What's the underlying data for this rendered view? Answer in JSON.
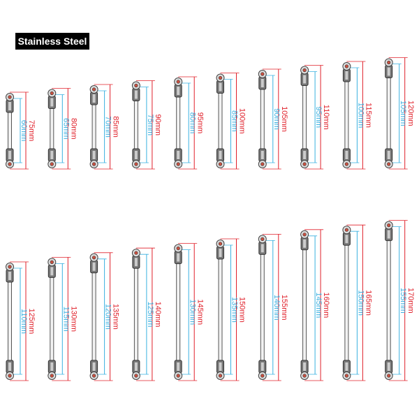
{
  "badge": "Stainless Steel",
  "rows": [
    {
      "links": [
        {
          "total": "75mm",
          "inner": "60mm"
        },
        {
          "total": "80mm",
          "inner": "65mm"
        },
        {
          "total": "85mm",
          "inner": "70mm"
        },
        {
          "total": "90mm",
          "inner": "75mm"
        },
        {
          "total": "95mm",
          "inner": "80mm"
        },
        {
          "total": "100mm",
          "inner": "85mm"
        },
        {
          "total": "105mm",
          "inner": "90mm"
        },
        {
          "total": "110mm",
          "inner": "95mm"
        },
        {
          "total": "115mm",
          "inner": "100mm"
        },
        {
          "total": "120mm",
          "inner": "105mm"
        }
      ]
    },
    {
      "links": [
        {
          "total": "125mm",
          "inner": "110mm"
        },
        {
          "total": "130mm",
          "inner": "115mm"
        },
        {
          "total": "135mm",
          "inner": "120mm"
        },
        {
          "total": "140mm",
          "inner": "125mm"
        },
        {
          "total": "145mm",
          "inner": "130mm"
        },
        {
          "total": "150mm",
          "inner": "135mm"
        },
        {
          "total": "155mm",
          "inner": "140mm"
        },
        {
          "total": "160mm",
          "inner": "145mm"
        },
        {
          "total": "165mm",
          "inner": "150mm"
        },
        {
          "total": "170mm",
          "inner": "155mm"
        }
      ]
    }
  ]
}
